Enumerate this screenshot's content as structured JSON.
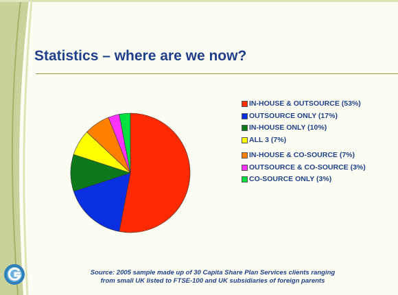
{
  "slide": {
    "title": "Statistics – where are we now?",
    "source_line1": "Source: 2005 sample made up of 30 Capita Share Plan Services clients ranging",
    "source_line2": "from small UK listed to FTSE-100 and UK subsidiaries of foreign parents"
  },
  "chart_data": {
    "type": "pie",
    "title": "",
    "legend_position": "right",
    "start": "top, clockwise",
    "slices": [
      {
        "label": "IN-HOUSE & OUTSOURCE (53%)",
        "value": 53,
        "color": "#ff2a00"
      },
      {
        "label": "OUTSOURCE ONLY (17%)",
        "value": 17,
        "color": "#0a2fe0"
      },
      {
        "label": "IN-HOUSE ONLY (10%)",
        "value": 10,
        "color": "#0c7a1a"
      },
      {
        "label": "ALL 3 (7%)",
        "value": 7,
        "color": "#ffff00"
      },
      {
        "label": "IN-HOUSE & CO-SOURCE (7%)",
        "value": 7,
        "color": "#ff8000"
      },
      {
        "label": "OUTSOURCE & CO-SOURCE (3%)",
        "value": 3,
        "color": "#ff33ff"
      },
      {
        "label": "CO-SOURCE ONLY (3%)",
        "value": 3,
        "color": "#00e040"
      }
    ]
  }
}
